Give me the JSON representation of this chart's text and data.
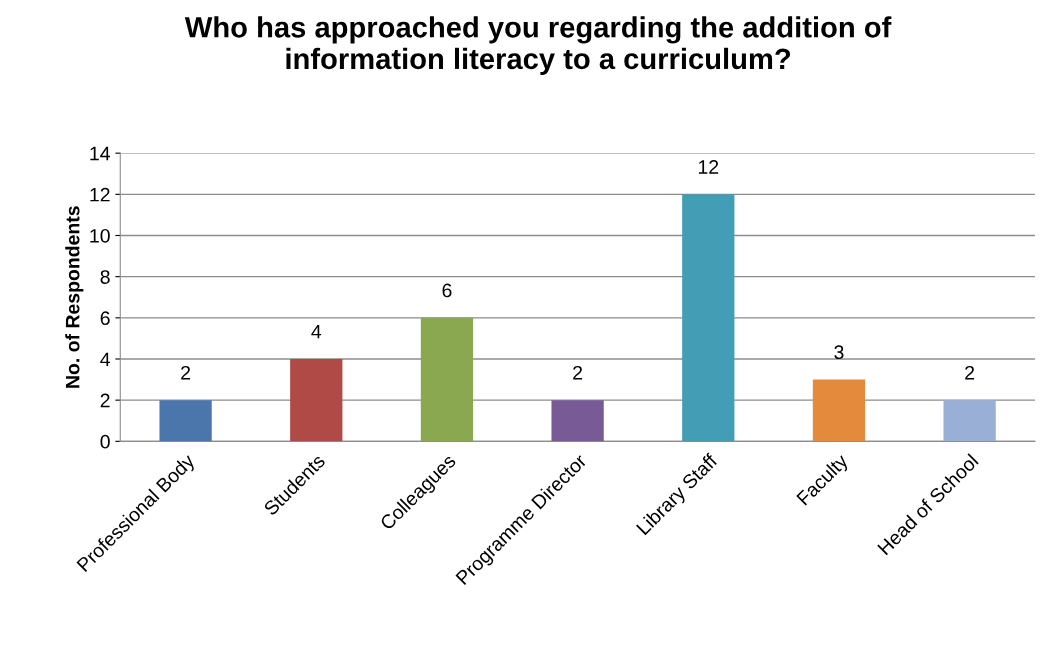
{
  "chart_data": {
    "type": "bar",
    "title": "Who has approached you regarding the addition of\ninformation literacy to a curriculum?",
    "ylabel": "No. of Respondents",
    "categories": [
      "Professional Body",
      "Students",
      "Colleagues",
      "Programme Director",
      "Library Staff",
      "Faculty",
      "Head of School"
    ],
    "values": [
      2,
      4,
      6,
      2,
      12,
      3,
      2
    ],
    "colors": [
      "#4a76ac",
      "#b04a47",
      "#8aa84f",
      "#775a96",
      "#439eb5",
      "#e38a3c",
      "#9aafd6"
    ],
    "ylim": [
      0,
      14
    ],
    "yticks": [
      0,
      2,
      4,
      6,
      8,
      10,
      12,
      14
    ],
    "grid": "y",
    "data_labels": true,
    "legend": false
  }
}
